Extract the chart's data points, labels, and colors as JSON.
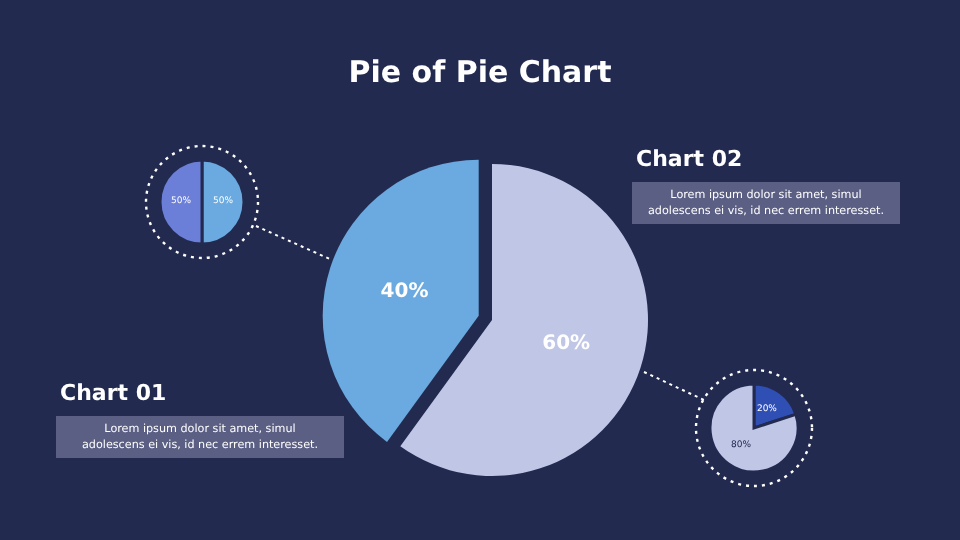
{
  "chart_data": [
    {
      "type": "pie",
      "title": "Pie of Pie Chart",
      "categories": [
        null,
        null
      ],
      "values": [
        60,
        40
      ],
      "colors": [
        "#c0c6e6",
        "#6aaae0"
      ],
      "value_labels": [
        "60%",
        "40%"
      ],
      "annotations": [
        "Chart 01",
        "Lorem ipsum dolor sit amet, simul adolescens ei vis, id nec errem interesset.",
        "Chart 02",
        "Lorem ipsum dolor sit amet, simul adolescens ei vis, id nec errem interesset."
      ]
    },
    {
      "type": "pie",
      "categories": [
        null,
        null
      ],
      "values": [
        50,
        50
      ],
      "colors": [
        "#6aaae0",
        "#6c7fd8"
      ],
      "value_labels": [
        "50%",
        "50%"
      ]
    },
    {
      "type": "pie",
      "categories": [
        null,
        null
      ],
      "values": [
        20,
        80
      ],
      "colors": [
        "#2f4fb5",
        "#c0c6e6"
      ],
      "value_labels": [
        "20%",
        "80%"
      ]
    }
  ]
}
